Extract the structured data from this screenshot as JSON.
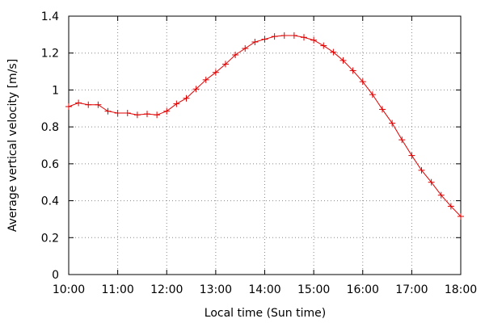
{
  "chart_data": {
    "type": "line",
    "xlabel": "Local time (Sun time)",
    "ylabel": "Average vertical velocity [m/s]",
    "x_ticks": [
      "10:00",
      "11:00",
      "12:00",
      "13:00",
      "14:00",
      "15:00",
      "16:00",
      "17:00",
      "18:00"
    ],
    "x_tick_hours": [
      10,
      11,
      12,
      13,
      14,
      15,
      16,
      17,
      18
    ],
    "y_ticks": [
      "0",
      "0.2",
      "0.4",
      "0.6",
      "0.8",
      "1",
      "1.2",
      "1.4"
    ],
    "y_tick_values": [
      0,
      0.2,
      0.4,
      0.6,
      0.8,
      1.0,
      1.2,
      1.4
    ],
    "xlim": [
      "10:00",
      "18:00"
    ],
    "ylim": [
      0,
      1.4
    ],
    "grid": true,
    "series": [
      {
        "color": "#e00000",
        "marker": "plus",
        "x": [
          "10:00",
          "10:12",
          "10:24",
          "10:36",
          "10:48",
          "11:00",
          "11:12",
          "11:24",
          "11:36",
          "11:48",
          "12:00",
          "12:12",
          "12:24",
          "12:36",
          "12:48",
          "13:00",
          "13:12",
          "13:24",
          "13:36",
          "13:48",
          "14:00",
          "14:12",
          "14:24",
          "14:36",
          "14:48",
          "15:00",
          "15:12",
          "15:24",
          "15:36",
          "15:48",
          "16:00",
          "16:12",
          "16:24",
          "16:36",
          "16:48",
          "17:00",
          "17:12",
          "17:24",
          "17:36",
          "17:48",
          "18:00"
        ],
        "y": [
          0.91,
          0.93,
          0.92,
          0.92,
          0.885,
          0.875,
          0.875,
          0.865,
          0.87,
          0.865,
          0.885,
          0.925,
          0.955,
          1.005,
          1.055,
          1.095,
          1.14,
          1.19,
          1.225,
          1.26,
          1.275,
          1.29,
          1.295,
          1.295,
          1.285,
          1.27,
          1.24,
          1.205,
          1.16,
          1.105,
          1.045,
          0.975,
          0.895,
          0.82,
          0.73,
          0.645,
          0.565,
          0.5,
          0.43,
          0.37,
          0.315
        ]
      }
    ]
  }
}
